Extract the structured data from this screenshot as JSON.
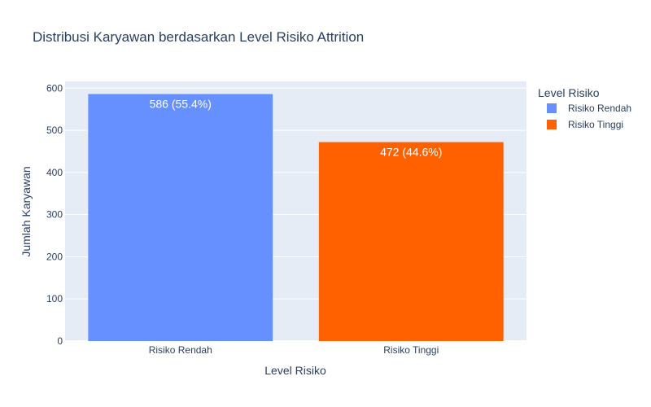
{
  "chart_data": {
    "type": "bar",
    "title": "Distribusi Karyawan berdasarkan Level Risiko Attrition",
    "xlabel": "Level Risiko",
    "ylabel": "Jumlah Karyawan",
    "categories": [
      "Risiko Rendah",
      "Risiko Tinggi"
    ],
    "values": [
      586,
      472
    ],
    "bar_labels": [
      "586 (55.4%)",
      "472 (44.6%)"
    ],
    "colors": [
      "#6690ff",
      "#ff6100"
    ],
    "ylim": [
      0,
      616
    ],
    "yticks": [
      0,
      100,
      200,
      300,
      400,
      500,
      600
    ],
    "grid": true,
    "legend": {
      "title": "Level Risiko",
      "position": "top-right",
      "items": [
        {
          "label": "Risiko Rendah",
          "color": "#6690ff"
        },
        {
          "label": "Risiko Tinggi",
          "color": "#ff6100"
        }
      ]
    }
  }
}
